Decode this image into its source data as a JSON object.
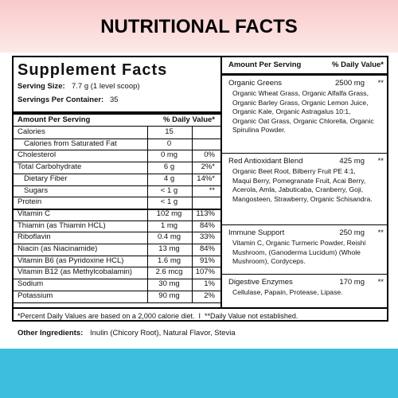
{
  "header": {
    "title": "NUTRITIONAL FACTS"
  },
  "facts": {
    "title": "Supplement Facts",
    "serving_size_label": "Serving Size:",
    "serving_size": "7.7 g (1 level scoop)",
    "servings_label": "Servings Per Container:",
    "servings": "35",
    "headers": [
      "Amount Per Serving",
      "% Daily Value*"
    ],
    "rows": [
      [
        "Calories",
        "15"
      ],
      [
        "Calories from Saturated Fat",
        "0"
      ],
      [
        "Cholesterol",
        "0 mg",
        "0%"
      ],
      [
        "Total Carbohydrate",
        "6 g",
        "2%*"
      ],
      [
        "Dietary Fiber",
        "4 g",
        "14%*"
      ],
      [
        "Sugars",
        "< 1 g",
        "**"
      ],
      [
        "Protein",
        "< 1 g"
      ],
      [
        "Vitamin C",
        "102 mg",
        "113%"
      ],
      [
        "Thiamin (as Thiamin HCL)",
        "1 mg",
        "84%"
      ],
      [
        "Riboflavin",
        "0.4 mg",
        "33%"
      ],
      [
        "Niacin (as Niacinamide)",
        "13 mg",
        "84%"
      ],
      [
        "Vitamin B6 (as Pyridoxine HCL)",
        "1.6 mg",
        "91%"
      ],
      [
        "Vitamin B12 (as Methylcobalamin)",
        "2.6 mcg",
        "107%"
      ],
      [
        "Sodium",
        "30 mg",
        "1%"
      ],
      [
        "Potassium",
        "90 mg",
        "2%"
      ]
    ],
    "blend_headers": [
      "Amount Per Serving",
      "% Daily Value*"
    ],
    "blends": [
      {
        "name": "Organic Greens",
        "amount": "2500 mg",
        "dv": "**",
        "ingredients": "Organic Wheat Grass, Organic Alfalfa Grass, Organic Barley Grass, Organic Lemon Juice, Organic Kale, Organic Astragalus 10:1, Organic Oat Grass, Organic Chlorella, Organic Spirulina Powder."
      },
      {
        "name": "Red Antioxidant Blend",
        "amount": "425 mg",
        "dv": "**",
        "ingredients": "Organic Beet Root, Bilberry Fruit PE 4:1, Maqui Berry, Pomegranate Fruit, Acai Berry, Acerola, Amla, Jabuticaba, Cranberry, Goji, Mangosteen, Strawberry, Organic Schisandra."
      },
      {
        "name": "Immune Support",
        "amount": "250 mg",
        "dv": "**",
        "ingredients": "Vitamin C, Organic Turmeric Powder, Reishi Mushroom, (Ganoderma Lucidum) (Whole Mushroom), Cordyceps."
      },
      {
        "name": "Digestive Enzymes",
        "amount": "170 mg",
        "dv": "**",
        "ingredients": "Cellulase, Papain, Protease, Lipase."
      }
    ],
    "footnote": "*Percent Daily Values are based on a 2,000 calorie diet.  I  **Daily Value not established.",
    "other_label": "Other Ingredients:",
    "other": "Inulin (Chicory Root), Natural Flavor, Stevia"
  }
}
